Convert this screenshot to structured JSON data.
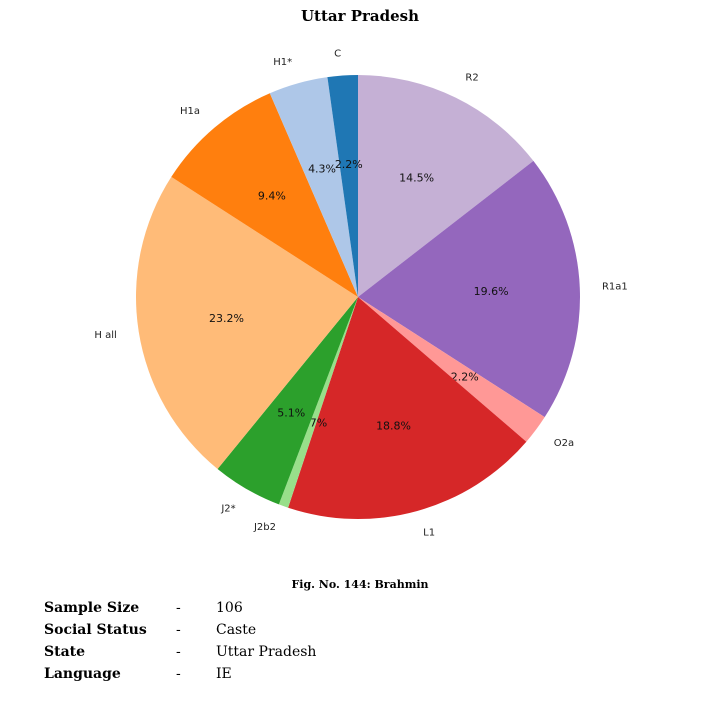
{
  "chart_data": {
    "type": "pie",
    "title": "Uttar Pradesh",
    "slices": [
      {
        "label": "R2",
        "value": 14.5,
        "pct_label": "14.5%",
        "color": "#c5b0d5"
      },
      {
        "label": "R1a1",
        "value": 19.6,
        "pct_label": "19.6%",
        "color": "#9467bd"
      },
      {
        "label": "O2a",
        "value": 2.2,
        "pct_label": "2.2%",
        "color": "#ff9896"
      },
      {
        "label": "L1",
        "value": 18.8,
        "pct_label": "18.8%",
        "color": "#d62728"
      },
      {
        "label": "J2b2",
        "value": 0.7,
        "pct_label": "0.7%",
        "color": "#98df8a"
      },
      {
        "label": "J2*",
        "value": 5.1,
        "pct_label": "5.1%",
        "color": "#2ca02c"
      },
      {
        "label": "H all",
        "value": 23.2,
        "pct_label": "23.2%",
        "color": "#ffbb78"
      },
      {
        "label": "H1a",
        "value": 9.4,
        "pct_label": "9.4%",
        "color": "#ff7f0e"
      },
      {
        "label": "H1*",
        "value": 4.3,
        "pct_label": "4.3%",
        "color": "#aec7e8"
      },
      {
        "label": "C",
        "value": 2.2,
        "pct_label": "2.2%",
        "color": "#1f77b4"
      }
    ],
    "start_angle_deg": 90,
    "direction": "clockwise"
  },
  "caption": "Fig. No. 144: Brahmin",
  "info": [
    {
      "key": "Sample Size",
      "dash": "-",
      "value": "106"
    },
    {
      "key": "Social Status",
      "dash": "-",
      "value": "Caste"
    },
    {
      "key": "State",
      "dash": "-",
      "value": "Uttar Pradesh"
    },
    {
      "key": "Language",
      "dash": "-",
      "value": "IE"
    }
  ]
}
